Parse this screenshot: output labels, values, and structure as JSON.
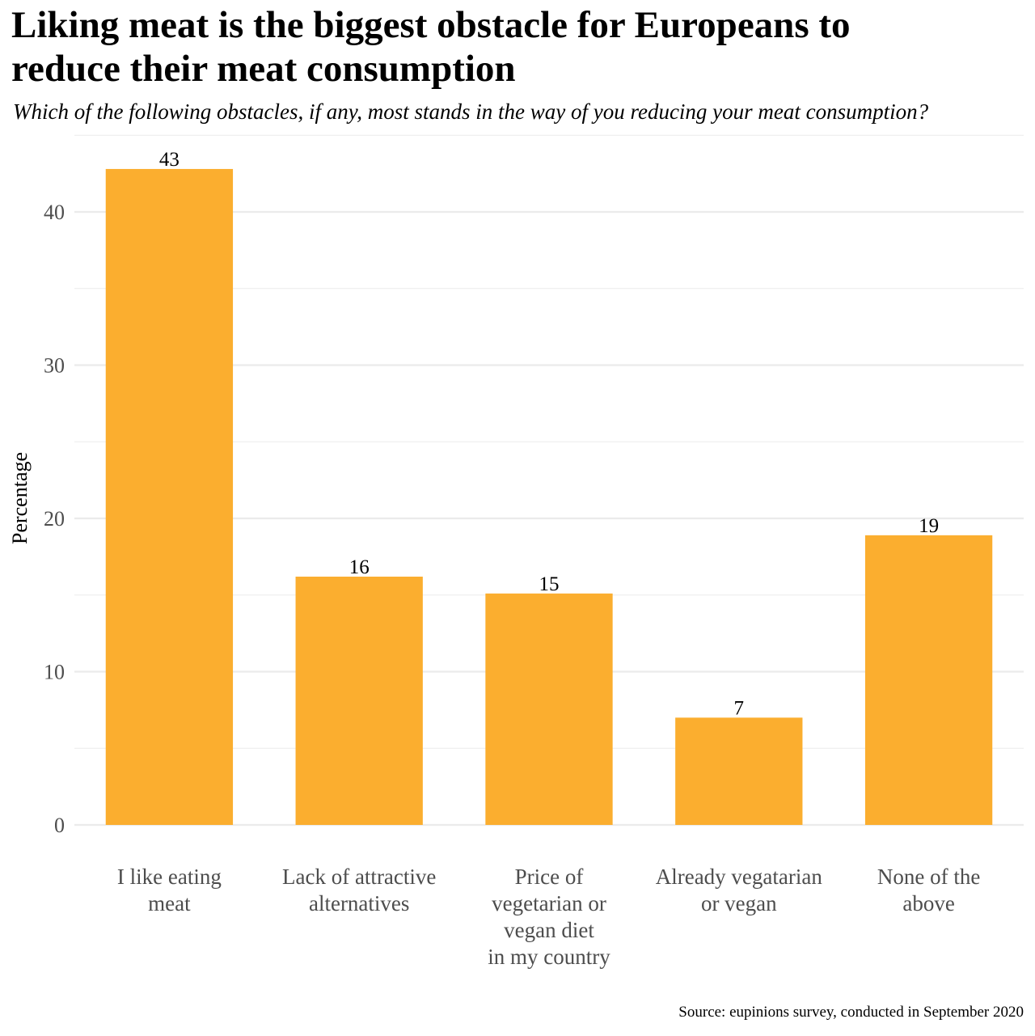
{
  "header": {
    "title": "Liking meat is the biggest obstacle for Europeans to\n reduce their meat consumption",
    "subtitle": "Which of the following obstacles, if any, most stands in the way of you reducing your meat consumption?"
  },
  "footer": {
    "caption": "Source: eupinions survey, conducted in September 2020"
  },
  "chart_data": {
    "type": "bar",
    "title": "Liking meat is the biggest obstacle for Europeans to\n reduce their meat consumption",
    "subtitle": "Which of the following obstacles, if any, most stands in the way of you reducing your meat consumption?",
    "categories": [
      "I like eating\nmeat",
      "Lack of attractive\nalternatives",
      "Price of\nvegetarian or\nvegan diet\nin my country",
      "Already vegatarian\nor vegan",
      "None of the\nabove"
    ],
    "values": [
      42.8,
      16.2,
      15.1,
      7.0,
      18.9
    ],
    "data_labels": [
      "43",
      "16",
      "15",
      "7",
      "19"
    ],
    "xlabel": "",
    "ylabel": "Percentage",
    "ylim": [
      0,
      45
    ],
    "yticks": [
      0,
      10,
      20,
      30,
      40
    ],
    "grid": true,
    "bar_color": "#FBAE2F",
    "grid_color": "#EBEBEB"
  }
}
